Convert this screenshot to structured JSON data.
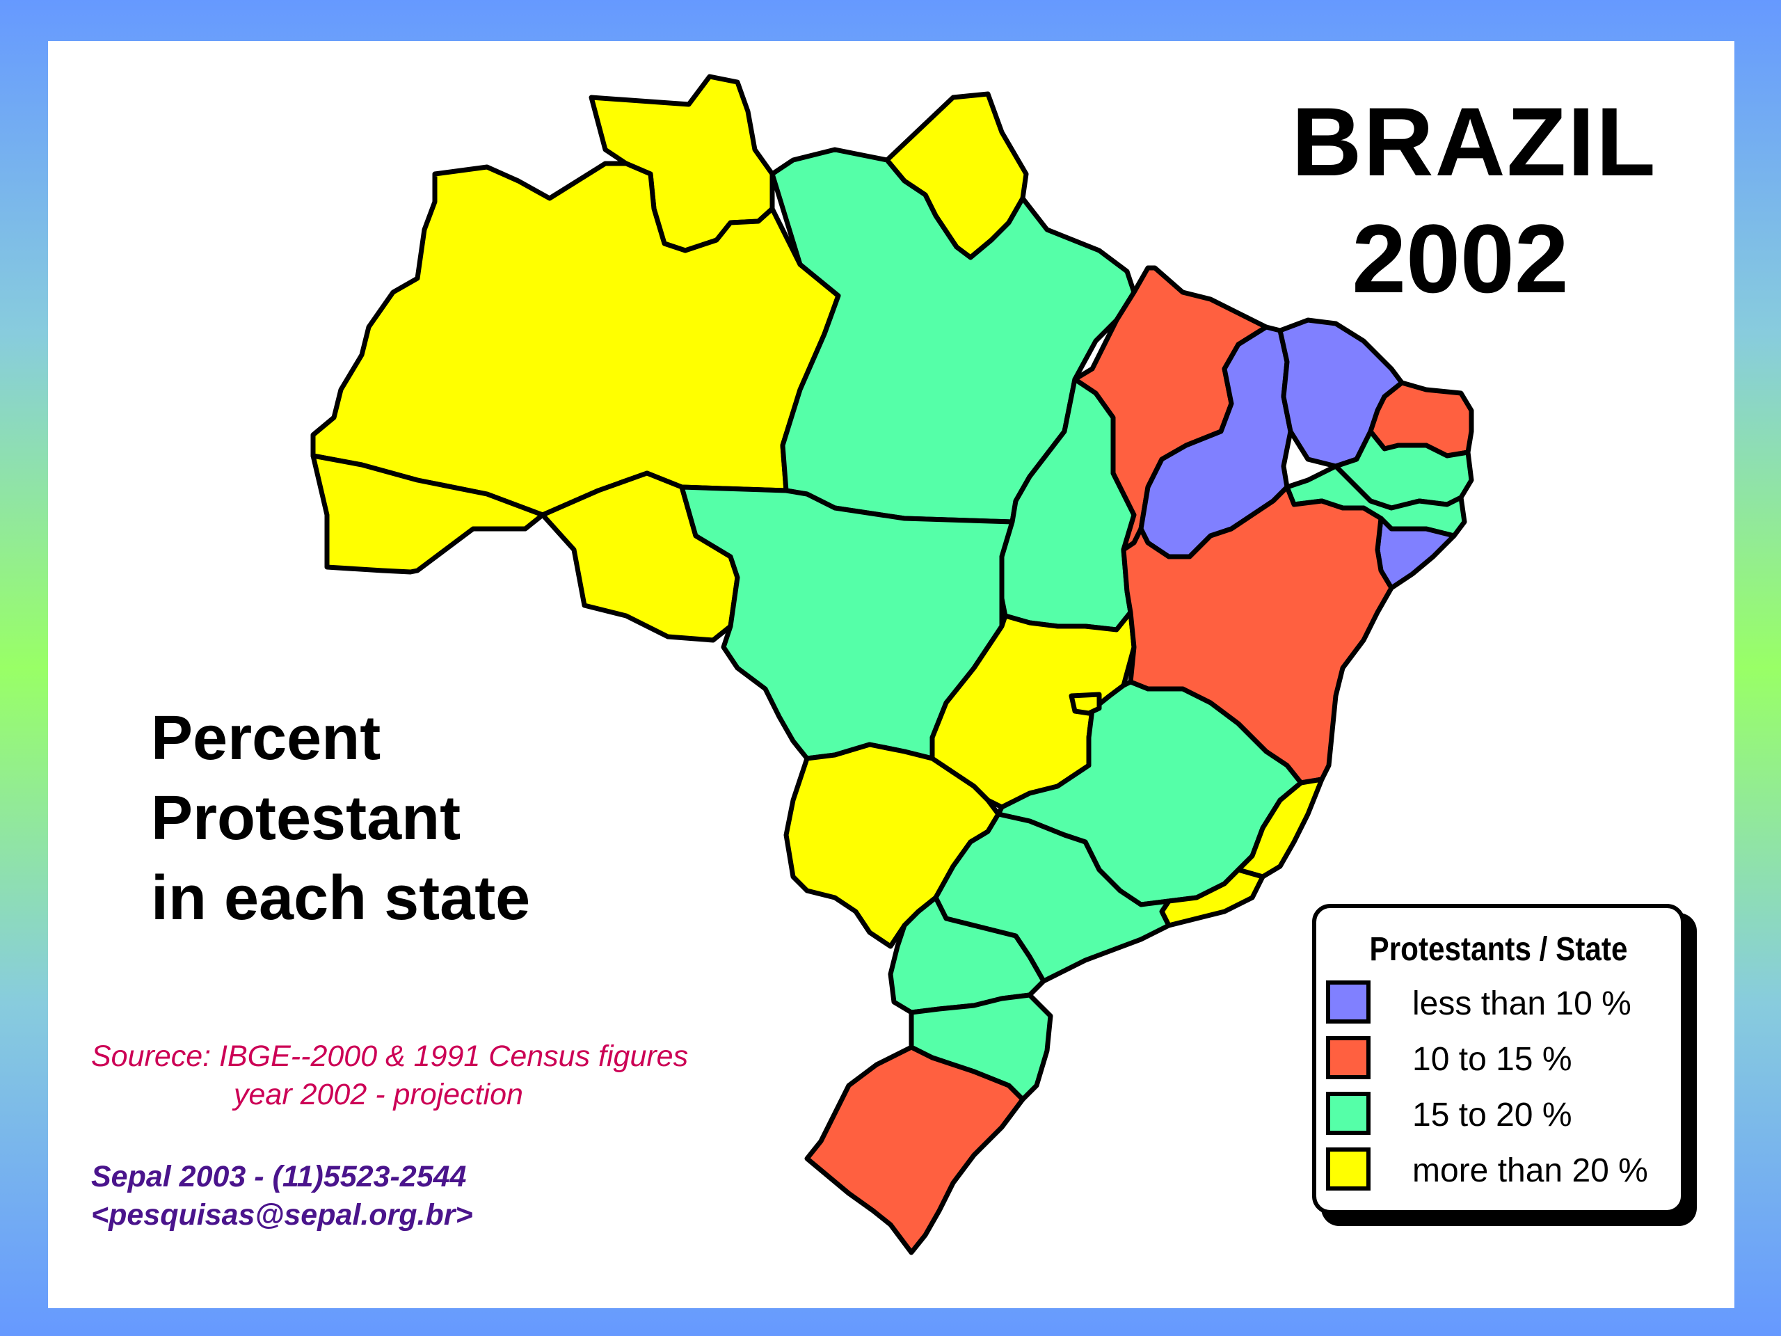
{
  "title": "BRAZIL",
  "year": "2002",
  "subtitle": [
    "Percent",
    "Protestant",
    "in each state"
  ],
  "source": {
    "line1": "Sourece:  IBGE--2000 & 1991 Census figures",
    "line2": "year 2002 - projection"
  },
  "credit": {
    "line1": "Sepal 2003 - (11)5523-2544",
    "line2": "<pesquisas@sepal.org.br>"
  },
  "legend": {
    "title": "Protestants / State",
    "items": [
      {
        "label": "less than 10 %",
        "color": "#8080ff"
      },
      {
        "label": "10 to 15 %",
        "color": "#ff6040"
      },
      {
        "label": "15 to 20 %",
        "color": "#55ffa8"
      },
      {
        "label": "more than 20 %",
        "color": "#ffff00"
      }
    ]
  },
  "colors": {
    "less_than_10": "#8080ff",
    "10_to_15": "#ff6040",
    "15_to_20": "#55ffa8",
    "more_than_20": "#ffff00",
    "frame_gradient": [
      "#6699ff",
      "#99ff66"
    ]
  },
  "states": [
    {
      "id": "roraima",
      "category": "more_than_20"
    },
    {
      "id": "amapa",
      "category": "more_than_20"
    },
    {
      "id": "amazonas",
      "category": "more_than_20"
    },
    {
      "id": "acre",
      "category": "more_than_20"
    },
    {
      "id": "rondonia",
      "category": "more_than_20"
    },
    {
      "id": "para",
      "category": "15_to_20"
    },
    {
      "id": "mato-grosso",
      "category": "15_to_20"
    },
    {
      "id": "tocantins",
      "category": "15_to_20"
    },
    {
      "id": "goias",
      "category": "more_than_20"
    },
    {
      "id": "mato-grosso-do-sul",
      "category": "more_than_20"
    },
    {
      "id": "maranhao",
      "category": "10_to_15"
    },
    {
      "id": "piaui",
      "category": "less_than_10"
    },
    {
      "id": "ceara",
      "category": "less_than_10"
    },
    {
      "id": "rio-grande-do-norte",
      "category": "10_to_15"
    },
    {
      "id": "paraiba",
      "category": "15_to_20"
    },
    {
      "id": "pernambuco",
      "category": "15_to_20"
    },
    {
      "id": "alagoas",
      "category": "less_than_10"
    },
    {
      "id": "bahia",
      "category": "10_to_15"
    },
    {
      "id": "minas-gerais",
      "category": "15_to_20"
    },
    {
      "id": "espirito-santo",
      "category": "more_than_20"
    },
    {
      "id": "rio-de-janeiro",
      "category": "more_than_20"
    },
    {
      "id": "sao-paulo",
      "category": "15_to_20"
    },
    {
      "id": "parana",
      "category": "15_to_20"
    },
    {
      "id": "santa-catarina",
      "category": "15_to_20"
    },
    {
      "id": "rio-grande-do-sul",
      "category": "10_to_15"
    },
    {
      "id": "distrito-federal",
      "category": "more_than_20"
    }
  ]
}
